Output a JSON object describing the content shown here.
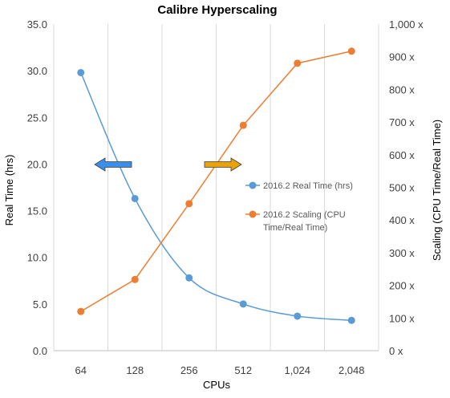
{
  "chart_data": {
    "type": "line",
    "title": "Calibre Hyperscaling",
    "xlabel": "CPUs",
    "ylabel": "Real Time (hrs)",
    "y2label": "Scaling (CPU Time/Real Time)",
    "categories": [
      "64",
      "128",
      "256",
      "512",
      "1,024",
      "2,048"
    ],
    "ylim": [
      0,
      35
    ],
    "y2lim": [
      0,
      1000
    ],
    "y_ticks": [
      "0.0",
      "5.0",
      "10.0",
      "15.0",
      "20.0",
      "25.0",
      "30.0",
      "35.0"
    ],
    "y2_ticks": [
      "0 x",
      "100 x",
      "200 x",
      "300 x",
      "400 x",
      "500 x",
      "600 x",
      "700 x",
      "800 x",
      "900 x",
      "1,000 x"
    ],
    "grid": "vertical",
    "legend_position": "right-center",
    "series": [
      {
        "name": "2016.2 Real Time (hrs)",
        "axis": "left",
        "color": "#5B9BD5",
        "smooth": true,
        "values": [
          29.8,
          16.3,
          7.8,
          5.0,
          3.7,
          3.25
        ]
      },
      {
        "name": "2016.2 Scaling (CPU Time/Real Time)",
        "axis": "right",
        "color": "#ED7D31",
        "smooth": false,
        "values": [
          120,
          218,
          450,
          690,
          880,
          917
        ]
      }
    ],
    "annotations": [
      {
        "type": "arrow",
        "direction": "left",
        "color": "#3B8FE8",
        "points_to_axis": "left"
      },
      {
        "type": "arrow",
        "direction": "right",
        "color": "#E8A20C",
        "points_to_axis": "right"
      }
    ]
  }
}
